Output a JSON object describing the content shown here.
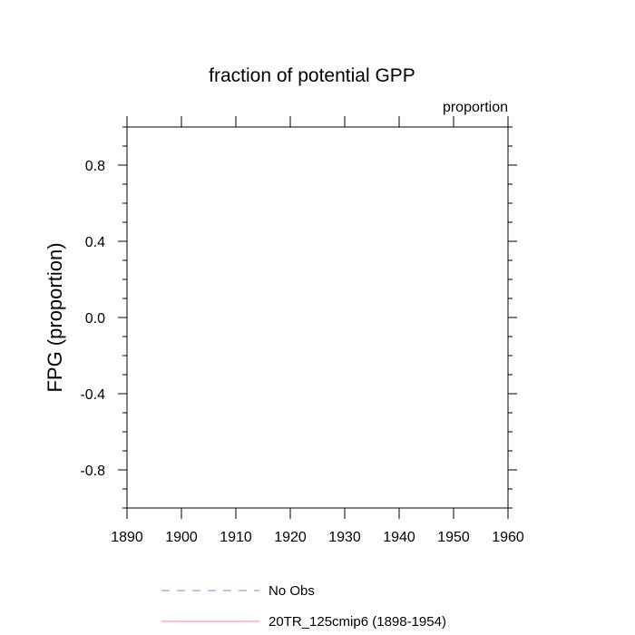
{
  "chart_data": {
    "type": "line",
    "title": "fraction of potential GPP",
    "units_label": "proportion",
    "ylabel": "FPG  (proportion)",
    "xlabel": "",
    "xlim": [
      1890,
      1960
    ],
    "ylim": [
      -1.0,
      1.0
    ],
    "x_major_ticks": [
      1890,
      1900,
      1910,
      1920,
      1930,
      1940,
      1950,
      1960
    ],
    "x_tick_labels": [
      "1890",
      "1900",
      "1910",
      "1920",
      "1930",
      "1940",
      "1950",
      "1960"
    ],
    "y_major_ticks": [
      -0.8,
      -0.4,
      0.0,
      0.4,
      0.8
    ],
    "y_tick_labels": [
      "-0.8",
      "-0.4",
      "0.0",
      "0.4",
      "0.8"
    ],
    "y_minor_step": 0.1,
    "grid": false,
    "legend_position": "bottom-left",
    "series": [
      {
        "name": "No Obs",
        "color": "#7f7fff",
        "dash": "dashed",
        "x": [],
        "y": []
      },
      {
        "name": "20TR_125cmip6 (1898-1954)",
        "color": "#ff7f7f",
        "dash": "solid",
        "x": [],
        "y": []
      }
    ]
  }
}
